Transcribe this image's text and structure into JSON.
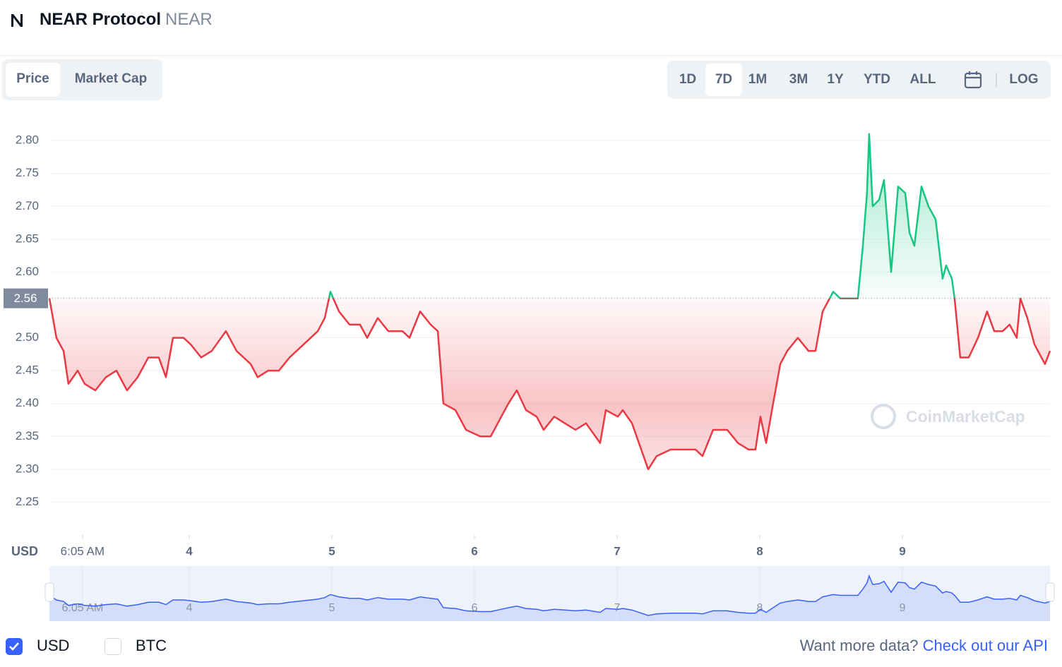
{
  "header": {
    "title": "NEAR Protocol",
    "symbol": "NEAR"
  },
  "tabs": [
    "Price",
    "Market Cap"
  ],
  "ranges": [
    "1D",
    "7D",
    "1M",
    "3M",
    "1Y",
    "YTD",
    "ALL"
  ],
  "scale_toggle": "LOG",
  "chart_data": {
    "type": "line",
    "y_axis_label": "USD",
    "watermark": "CoinMarketCap",
    "up_color": "#16c784",
    "down_color": "#ea3943",
    "reference_price": 2.56,
    "x": [
      3.02,
      3.069,
      3.119,
      3.153,
      3.218,
      3.267,
      3.342,
      3.416,
      3.49,
      3.564,
      3.639,
      3.713,
      3.787,
      3.837,
      3.886,
      3.96,
      4.01,
      4.084,
      4.158,
      4.257,
      4.332,
      4.431,
      4.48,
      4.554,
      4.629,
      4.703,
      4.802,
      4.901,
      4.95,
      4.99,
      5.05,
      5.124,
      5.198,
      5.248,
      5.322,
      5.396,
      5.495,
      5.545,
      5.619,
      5.693,
      5.743,
      5.782,
      5.866,
      5.941,
      6.04,
      6.114,
      6.188,
      6.238,
      6.297,
      6.361,
      6.436,
      6.485,
      6.559,
      6.634,
      6.708,
      6.782,
      6.881,
      6.921,
      7.005,
      7.04,
      7.104,
      7.153,
      7.218,
      7.277,
      7.376,
      7.475,
      7.55,
      7.599,
      7.673,
      7.772,
      7.847,
      7.921,
      7.97,
      8.005,
      8.045,
      8.094,
      8.144,
      8.193,
      8.267,
      8.342,
      8.391,
      8.441,
      8.515,
      8.564,
      8.614,
      8.688,
      8.723,
      8.752,
      8.767,
      8.792,
      8.837,
      8.871,
      8.921,
      8.97,
      9.02,
      9.05,
      9.084,
      9.134,
      9.183,
      9.233,
      9.282,
      9.307,
      9.347,
      9.366,
      9.406,
      9.465,
      9.53,
      9.594,
      9.644,
      9.703,
      9.752,
      9.802,
      9.827,
      9.876,
      9.926,
      9.975,
      10.0,
      10.035
    ],
    "values": [
      2.56,
      2.5,
      2.48,
      2.43,
      2.45,
      2.43,
      2.42,
      2.44,
      2.45,
      2.42,
      2.44,
      2.47,
      2.47,
      2.44,
      2.5,
      2.5,
      2.49,
      2.47,
      2.48,
      2.51,
      2.48,
      2.46,
      2.44,
      2.45,
      2.45,
      2.47,
      2.49,
      2.51,
      2.53,
      2.57,
      2.54,
      2.52,
      2.52,
      2.5,
      2.53,
      2.51,
      2.51,
      2.5,
      2.54,
      2.52,
      2.51,
      2.4,
      2.39,
      2.36,
      2.35,
      2.35,
      2.38,
      2.4,
      2.42,
      2.39,
      2.38,
      2.36,
      2.38,
      2.37,
      2.36,
      2.37,
      2.34,
      2.39,
      2.38,
      2.39,
      2.37,
      2.34,
      2.3,
      2.32,
      2.33,
      2.33,
      2.33,
      2.32,
      2.36,
      2.36,
      2.34,
      2.33,
      2.33,
      2.38,
      2.34,
      2.4,
      2.46,
      2.48,
      2.5,
      2.48,
      2.48,
      2.54,
      2.57,
      2.56,
      2.56,
      2.56,
      2.64,
      2.72,
      2.81,
      2.7,
      2.71,
      2.74,
      2.6,
      2.73,
      2.72,
      2.66,
      2.64,
      2.73,
      2.7,
      2.68,
      2.59,
      2.61,
      2.59,
      2.56,
      2.47,
      2.47,
      2.5,
      2.54,
      2.51,
      2.51,
      2.52,
      2.5,
      2.56,
      2.53,
      2.49,
      2.47,
      2.46,
      2.48
    ],
    "xlim": [
      3.02,
      10.035
    ],
    "xticks": [
      {
        "value": 3.252,
        "label": "6:05 AM"
      },
      4,
      5,
      6,
      7,
      8,
      9
    ],
    "ylim": [
      2.2,
      2.842
    ],
    "yticks": [
      2.25,
      {
        "value": 2.3,
        "label": "2.30"
      },
      2.35,
      {
        "value": 2.4,
        "label": "2.40"
      },
      2.45,
      {
        "value": 2.5,
        "label": "2.50"
      },
      2.55,
      {
        "value": 2.6,
        "label": "2.60"
      },
      2.65,
      {
        "value": 2.7,
        "label": "2.70"
      },
      2.75,
      {
        "value": 2.8,
        "label": "2.80"
      }
    ],
    "grid": true
  },
  "footer": {
    "currencies": [
      {
        "label": "USD",
        "checked": true
      },
      {
        "label": "BTC",
        "checked": false
      }
    ],
    "note": "Want more data?",
    "link": "Check out our API"
  }
}
